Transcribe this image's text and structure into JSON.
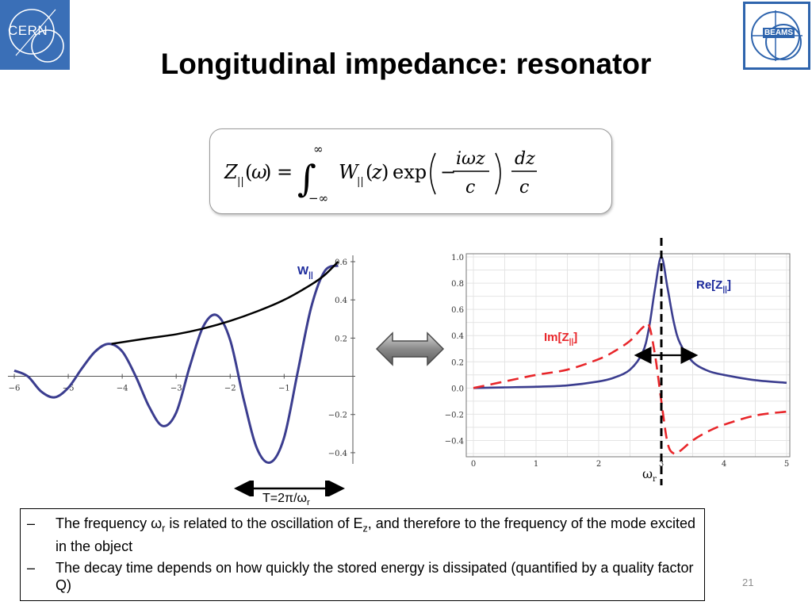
{
  "slide": {
    "title": "Longitudinal impedance: resonator",
    "page_number": "21",
    "logos": {
      "left": "CERN",
      "right": "BEAMS"
    }
  },
  "formula": {
    "description_tex": "Z_{||}(\\omega) = \\int_{-\\infty}^{\\infty} W_{||}(z) \\exp\\left(-\\frac{i\\omega z}{c}\\right) \\frac{dz}{c}"
  },
  "period_label": {
    "prefix": "T=2",
    "pi": "π",
    "slash": "/",
    "omega": "ω",
    "sub": "r"
  },
  "bullets": [
    {
      "dash": "–",
      "part1": "The frequency ",
      "omega": "ω",
      "omega_sub": "r",
      "part2": " is related to the oscillation of E",
      "e_sub": "z",
      "part3": ", and therefore to the frequency of the mode excited in the object"
    },
    {
      "dash": "–",
      "text": "The decay time depends on how quickly the stored energy is dissipated (quantified by a quality factor Q)"
    }
  ],
  "chart_data": [
    {
      "type": "line",
      "series": [
        {
          "name": "W||",
          "color": "#3b3d8f",
          "x": [
            -6,
            -5.75,
            -5.5,
            -5.25,
            -5,
            -4.75,
            -4.5,
            -4.25,
            -4,
            -3.75,
            -3.5,
            -3.25,
            -3,
            -2.75,
            -2.5,
            -2.25,
            -2,
            -1.75,
            -1.5,
            -1.25,
            -1,
            -0.75,
            -0.5,
            -0.25,
            0
          ],
          "y": [
            0.03,
            0.0,
            -0.08,
            -0.11,
            -0.06,
            0.04,
            0.13,
            0.17,
            0.13,
            0.0,
            -0.16,
            -0.26,
            -0.19,
            0.05,
            0.26,
            0.32,
            0.19,
            -0.12,
            -0.38,
            -0.45,
            -0.32,
            0.02,
            0.36,
            0.55,
            0.58
          ]
        },
        {
          "color": "#000000",
          "x": [
            -4.2,
            -3.5,
            -3,
            -2.5,
            -2,
            -1.5,
            -1,
            -0.5,
            -0.25,
            0
          ],
          "y": [
            0.17,
            0.2,
            0.22,
            0.25,
            0.29,
            0.34,
            0.4,
            0.48,
            0.53,
            0.6
          ]
        }
      ],
      "xlim": [
        -6,
        0.2
      ],
      "ylim": [
        -0.5,
        0.6
      ],
      "xticks": [
        "−6",
        "−5",
        "−4",
        "−3",
        "−2",
        "−1"
      ],
      "yticks": [
        "0.6",
        "0.4",
        "0.2",
        "−0.2",
        "−0.4"
      ],
      "grid": false
    },
    {
      "type": "line",
      "series": [
        {
          "name": "Re[Z||]",
          "color": "#3b3d8f",
          "x": [
            0,
            0.5,
            1,
            1.5,
            2,
            2.25,
            2.5,
            2.7,
            2.8,
            2.9,
            3,
            3.1,
            3.2,
            3.3,
            3.5,
            3.75,
            4,
            4.5,
            5
          ],
          "y": [
            0.0,
            0.005,
            0.01,
            0.02,
            0.05,
            0.08,
            0.14,
            0.27,
            0.45,
            0.76,
            1.0,
            0.76,
            0.5,
            0.34,
            0.2,
            0.13,
            0.1,
            0.06,
            0.04
          ]
        },
        {
          "name": "Im[Z||]",
          "color": "#e8262a",
          "x": [
            0,
            0.5,
            1,
            1.5,
            2,
            2.25,
            2.5,
            2.7,
            2.8,
            2.9,
            3,
            3.1,
            3.2,
            3.3,
            3.5,
            3.75,
            4,
            4.5,
            5
          ],
          "y": [
            0.0,
            0.05,
            0.1,
            0.14,
            0.22,
            0.28,
            0.36,
            0.46,
            0.48,
            0.25,
            -0.1,
            -0.42,
            -0.5,
            -0.48,
            -0.4,
            -0.33,
            -0.28,
            -0.21,
            -0.18
          ]
        }
      ],
      "xlim": [
        0,
        5
      ],
      "ylim": [
        -0.5,
        1.0
      ],
      "xticks": [
        "0",
        "1",
        "2",
        "3",
        "4",
        "5"
      ],
      "yticks": [
        "1.0",
        "0.8",
        "0.6",
        "0.4",
        "0.2",
        "0.0",
        "−0.2",
        "−0.4"
      ],
      "annotations": {
        "resonance_label": "ωr",
        "resonance_x": 3
      },
      "grid": true
    }
  ]
}
